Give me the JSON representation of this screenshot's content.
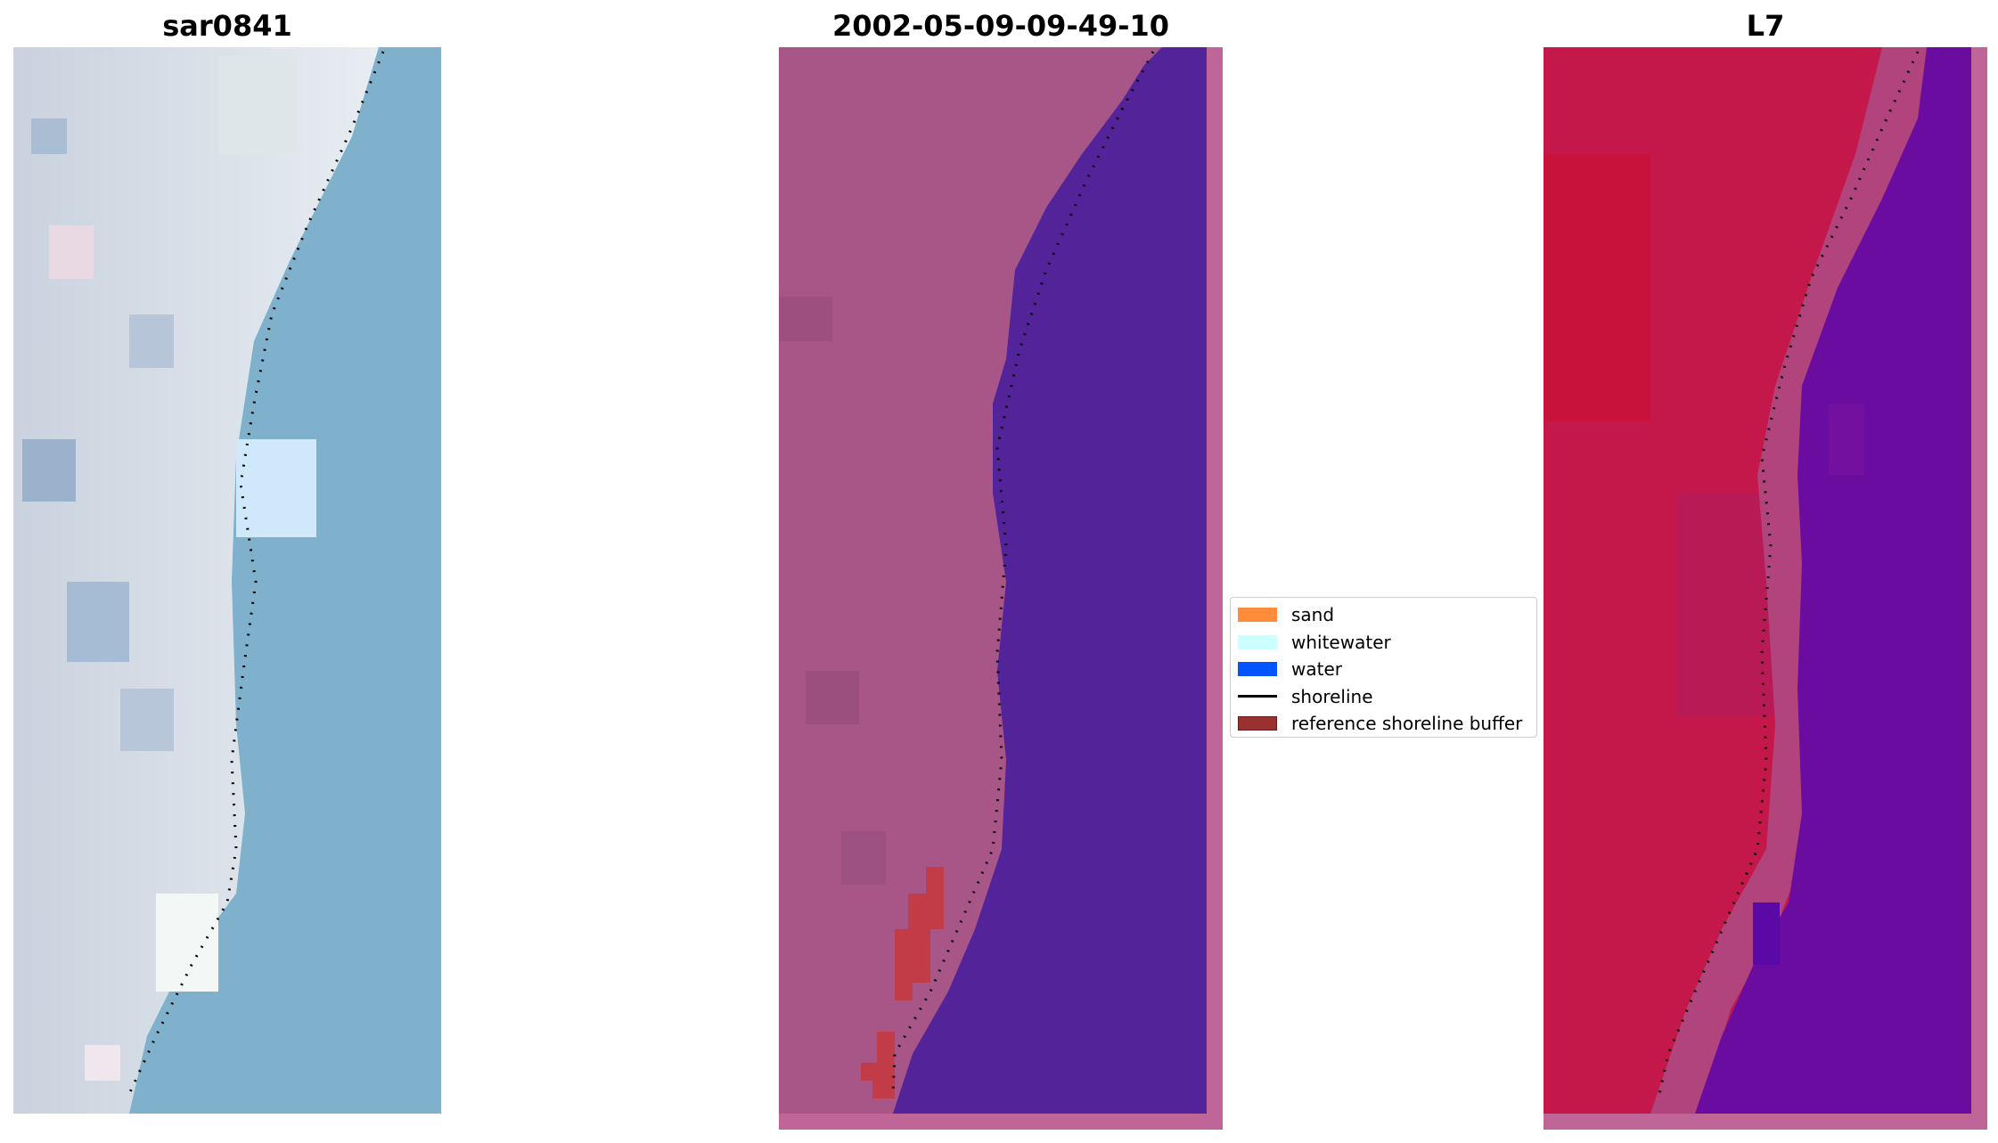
{
  "panels": [
    {
      "title": "sar0841"
    },
    {
      "title": "2002-05-09-09-49-10"
    },
    {
      "title": "L7"
    }
  ],
  "legend": {
    "items": [
      {
        "label": "sand",
        "color": "#ff8c3a"
      },
      {
        "label": "whitewater",
        "color": "#ccffff"
      },
      {
        "label": "water",
        "color": "#0055ff"
      },
      {
        "label": "shoreline",
        "color": "#000000"
      },
      {
        "label": "reference shoreline buffer",
        "color": "#9b3030"
      }
    ]
  }
}
